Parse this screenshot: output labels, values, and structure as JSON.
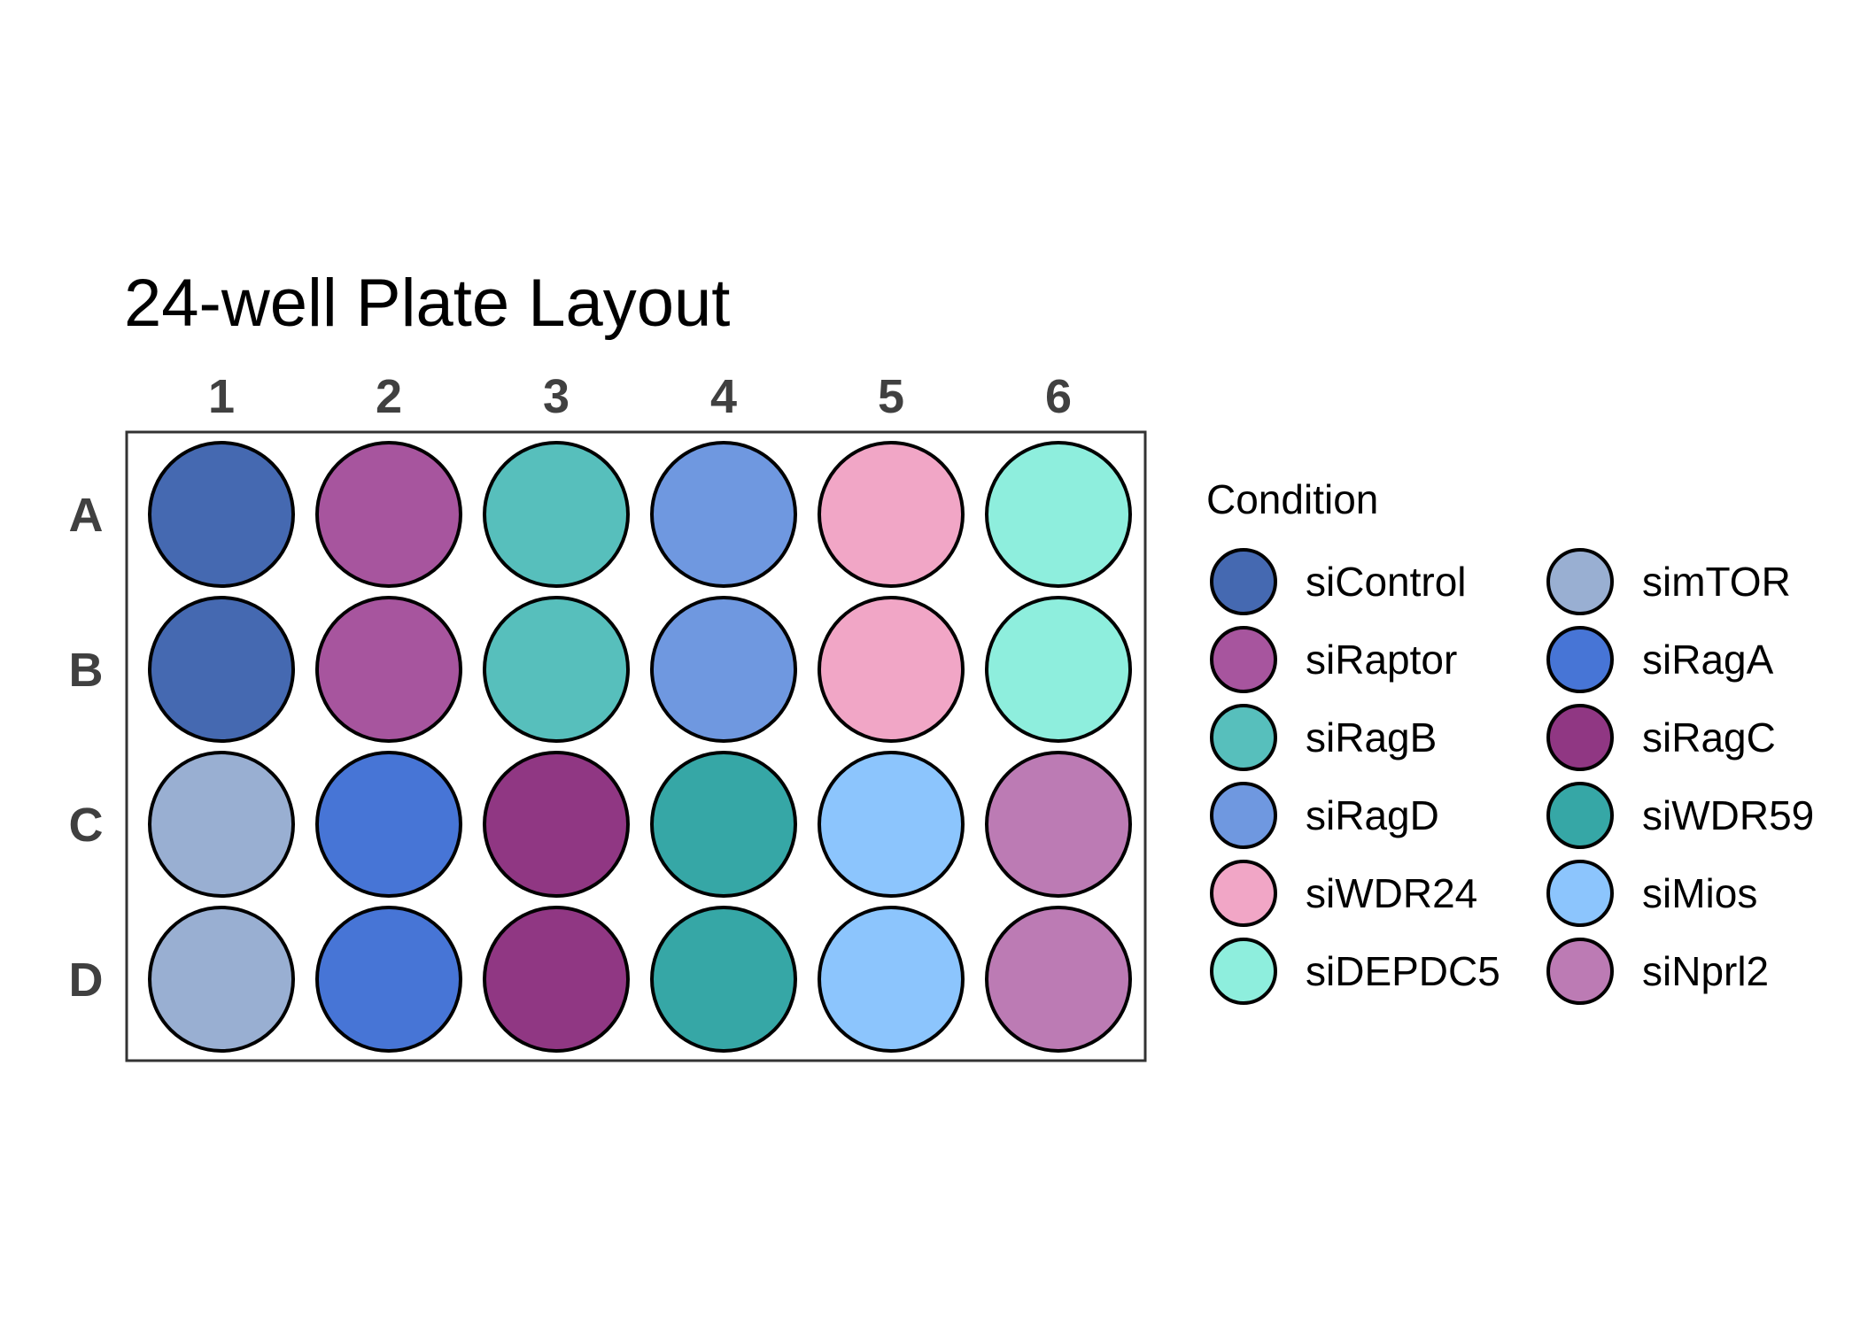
{
  "title": "24-well Plate Layout",
  "columns": [
    "1",
    "2",
    "3",
    "4",
    "5",
    "6"
  ],
  "rows": [
    "A",
    "B",
    "C",
    "D"
  ],
  "plate": [
    [
      "siControl",
      "siRaptor",
      "siRagB",
      "siRagD",
      "siWDR24",
      "siDEPDC5"
    ],
    [
      "siControl",
      "siRaptor",
      "siRagB",
      "siRagD",
      "siWDR24",
      "siDEPDC5"
    ],
    [
      "simTOR",
      "siRagA",
      "siRagC",
      "siWDR59",
      "siMios",
      "siNprl2"
    ],
    [
      "simTOR",
      "siRagA",
      "siRagC",
      "siWDR59",
      "siMios",
      "siNprl2"
    ]
  ],
  "legend": {
    "title": "Condition",
    "entries": [
      {
        "label": "siControl",
        "color": "#4569B1"
      },
      {
        "label": "siRaptor",
        "color": "#A7559E"
      },
      {
        "label": "siRagB",
        "color": "#57BFBC"
      },
      {
        "label": "siRagD",
        "color": "#6F98E0"
      },
      {
        "label": "siWDR24",
        "color": "#F1A6C6"
      },
      {
        "label": "siDEPDC5",
        "color": "#8EEEDD"
      },
      {
        "label": "simTOR",
        "color": "#99AFD2"
      },
      {
        "label": "siRagA",
        "color": "#4775D6"
      },
      {
        "label": "siRagC",
        "color": "#903783"
      },
      {
        "label": "siWDR59",
        "color": "#36A7A6"
      },
      {
        "label": "siMios",
        "color": "#8CC5FD"
      },
      {
        "label": "siNprl2",
        "color": "#BC7BB4"
      }
    ]
  }
}
